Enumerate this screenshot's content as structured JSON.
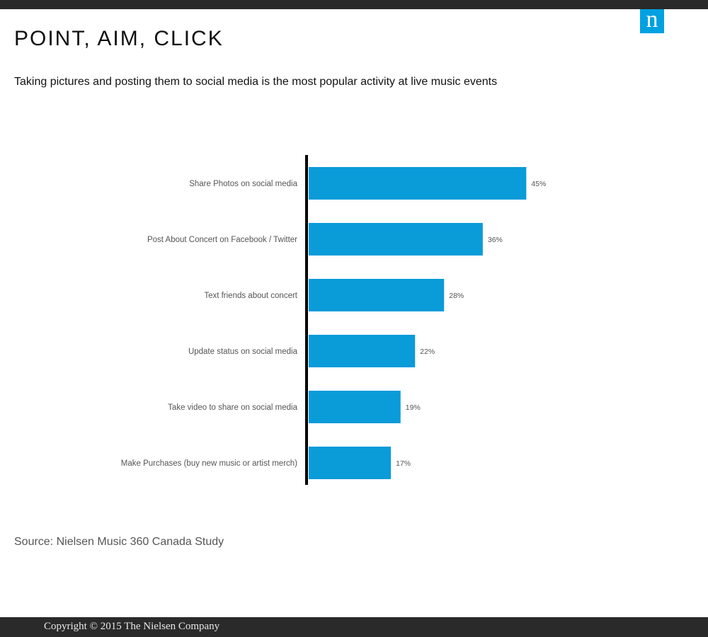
{
  "header": {
    "logo_letter": "n",
    "title": "POINT, AIM, CLICK",
    "subtitle": "Taking pictures and posting them to social media is the most popular activity at live music events"
  },
  "colors": {
    "bar": "#0a9bd9",
    "brand": "#00a1e0",
    "bars_dark": "#2a2a2a"
  },
  "chart_data": {
    "type": "bar",
    "orientation": "horizontal",
    "categories": [
      "Share Photos on social media",
      "Post About Concert on Facebook / Twitter",
      "Text friends about concert",
      "Update status on social media",
      "Take video to share on social media",
      "Make Purchases (buy new music or artist merch)"
    ],
    "values": [
      45,
      36,
      28,
      22,
      19,
      17
    ],
    "value_labels": [
      "45%",
      "36%",
      "28%",
      "22%",
      "19%",
      "17%"
    ],
    "unit": "%",
    "title": "",
    "xlabel": "",
    "ylabel": "",
    "xlim": [
      0,
      100
    ],
    "grid": false,
    "legend": "none"
  },
  "source": "Source: Nielsen Music 360 Canada Study",
  "footer": {
    "copyright": "Copyright © 2015 The Nielsen Company"
  }
}
